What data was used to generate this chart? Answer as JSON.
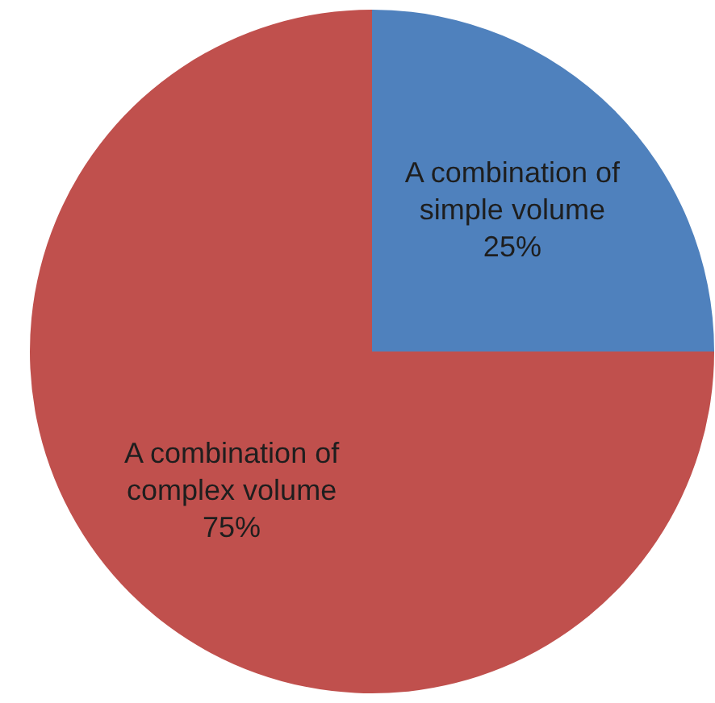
{
  "chart_data": {
    "type": "pie",
    "categories": [
      "A combination of simple volume",
      "A combination of complex volume"
    ],
    "values": [
      25,
      75
    ],
    "colors": [
      "#4f81bd",
      "#c0504d"
    ],
    "value_labels": [
      "25%",
      "75%"
    ],
    "legend": false
  }
}
